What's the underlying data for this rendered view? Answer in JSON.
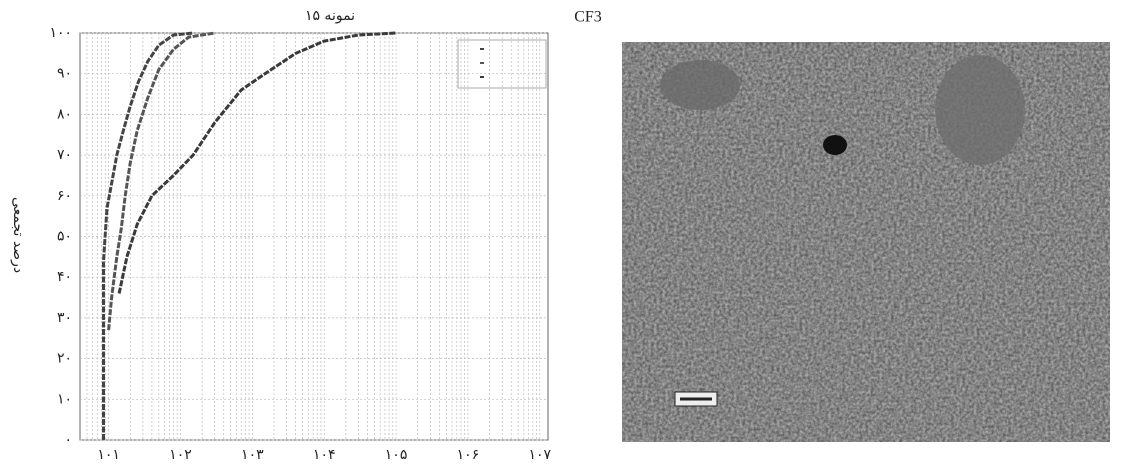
{
  "chart_data": {
    "type": "line",
    "title": "نمونه ۱۵",
    "subtitle": "CF3",
    "y_label": "درصد تجمعی",
    "log_x": true,
    "grid": true,
    "series": [
      {
        "color": "#444444",
        "x": [
          8.5,
          8.5,
          9.5,
          11,
          13,
          16,
          20,
          26,
          35,
          50,
          80,
          150
        ],
        "values": [
          0,
          44,
          57,
          63,
          70,
          76,
          82,
          88,
          93,
          97,
          99.5,
          100
        ]
      },
      {
        "color": "#555555",
        "x": [
          10,
          11,
          13,
          15,
          17,
          20,
          25,
          35,
          50,
          80,
          130,
          300
        ],
        "values": [
          27,
          35,
          45,
          52,
          60,
          68,
          76,
          84,
          91,
          96,
          99,
          100
        ]
      },
      {
        "color": "#3a3a3a",
        "x": [
          14,
          18,
          25,
          40,
          80,
          150,
          300,
          700,
          1500,
          4000,
          10000,
          30000,
          100000
        ],
        "values": [
          36,
          45,
          53,
          60,
          65,
          70,
          78,
          86,
          90,
          95,
          98,
          99.5,
          100
        ]
      }
    ],
    "xlim": [
      4,
      13000000
    ],
    "xticks": [
      {
        "value": 10,
        "label": "۱۰۱"
      },
      {
        "value": 100,
        "label": "۱۰۲"
      },
      {
        "value": 1000,
        "label": "۱۰۳"
      },
      {
        "value": 10000,
        "label": "۱۰۴"
      },
      {
        "value": 100000,
        "label": "۱۰۵"
      },
      {
        "value": 1000000,
        "label": "۱۰۶"
      },
      {
        "value": 10000000,
        "label": "۱۰۷"
      }
    ],
    "ylim": [
      0,
      100
    ],
    "yticks": [
      {
        "value": 0,
        "label": "۰"
      },
      {
        "value": 10,
        "label": "۱۰"
      },
      {
        "value": 20,
        "label": "۲۰"
      },
      {
        "value": 30,
        "label": "۳۰"
      },
      {
        "value": 40,
        "label": "۴۰"
      },
      {
        "value": 50,
        "label": "۵۰"
      },
      {
        "value": 60,
        "label": "۶۰"
      },
      {
        "value": 70,
        "label": "۷۰"
      },
      {
        "value": 80,
        "label": "۸۰"
      },
      {
        "value": 90,
        "label": "۹۰"
      },
      {
        "value": 100,
        "label": "۱۰۰"
      }
    ]
  }
}
